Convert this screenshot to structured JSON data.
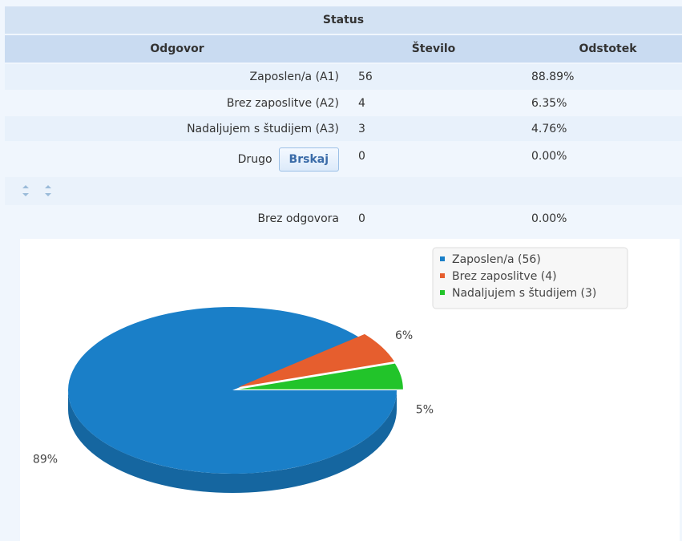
{
  "table": {
    "title": "Status",
    "headers": [
      "Odgovor",
      "Število",
      "Odstotek"
    ],
    "rows": [
      [
        "Zaposlen/a (A1)",
        56,
        "88.89%"
      ],
      [
        "Brez zaposlitve (A2)",
        4,
        "6.35%"
      ],
      [
        "Nadaljujem s študijem (A3)",
        3,
        "4.76%"
      ]
    ],
    "other": {
      "label": "Drugo",
      "button": "Brskaj",
      "count": 0,
      "percent": "0.00%"
    },
    "no_answer": {
      "label": "Brez odgovora",
      "count": 0,
      "percent": "0.00%"
    }
  },
  "chart_data": {
    "type": "pie",
    "categories": [
      "Zaposlen/a (56)",
      "Brez zaposlitve (4)",
      "Nadaljujem s študijem (3)"
    ],
    "values": [
      89,
      6,
      5
    ],
    "value_labels": [
      "89%",
      "6%",
      "5%"
    ],
    "colors": [
      "#1a7fc8",
      "#e65e2e",
      "#22c42a"
    ],
    "legend": "top-right"
  }
}
